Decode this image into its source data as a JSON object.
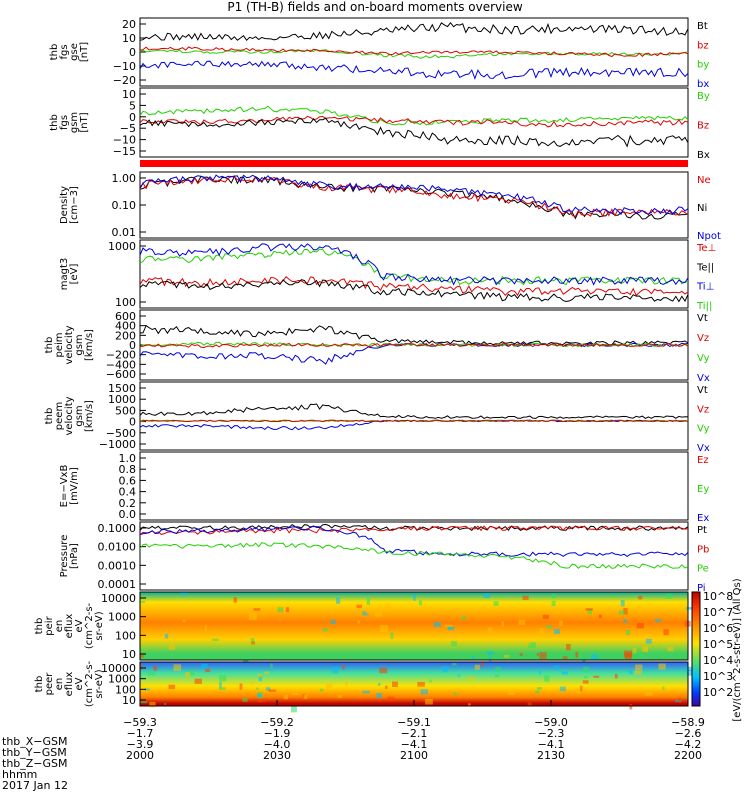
{
  "title": "P1 (TH-B) fields and on-board moments overview",
  "colors": {
    "black": "#000000",
    "red": "#e00000",
    "green": "#22d000",
    "blue": "#0000e0"
  },
  "panels": [
    {
      "id": "fgs-gse",
      "ylabel": [
        "thb",
        "fgs",
        "gse",
        "[nT]"
      ],
      "ticks": [
        "20",
        "10",
        "0",
        "−10",
        "−20"
      ],
      "legend": [
        [
          "Bt",
          "black"
        ],
        [
          "bz",
          "red"
        ],
        [
          "by",
          "green"
        ],
        [
          "bx",
          "blue"
        ]
      ]
    },
    {
      "id": "fgs-gsm",
      "ylabel": [
        "thb",
        "fgs",
        "gsm",
        "[nT]"
      ],
      "ticks": [
        "10",
        "5",
        "0",
        "−5",
        "−10",
        "−15"
      ],
      "legend": [
        [
          "By",
          "green"
        ],
        [
          "Bz",
          "red"
        ],
        [
          "Bx",
          "black"
        ]
      ]
    },
    {
      "id": "density",
      "ylabel": [
        "Density",
        "[cm−3]"
      ],
      "ticks": [
        "1.00",
        "0.10",
        "0.01"
      ],
      "legend": [
        [
          "Ne",
          "red"
        ],
        [
          "Ni",
          "black"
        ],
        [
          "Npot",
          "blue"
        ]
      ]
    },
    {
      "id": "temp",
      "ylabel": [
        "magt3",
        "[eV]"
      ],
      "ticks": [
        "1000",
        "100"
      ],
      "legend": [
        [
          "Te⊥",
          "red"
        ],
        [
          "Te||",
          "black"
        ],
        [
          "Ti⊥",
          "blue"
        ],
        [
          "Ti||",
          "green"
        ]
      ]
    },
    {
      "id": "ion-vel",
      "ylabel": [
        "thb",
        "peim",
        "velocity",
        "gsm",
        "[km/s]"
      ],
      "ticks": [
        "600",
        "400",
        "200",
        "0",
        "−200",
        "−400",
        "−600"
      ],
      "legend": [
        [
          "Vt",
          "black"
        ],
        [
          "Vz",
          "red"
        ],
        [
          "Vy",
          "green"
        ],
        [
          "Vx",
          "blue"
        ]
      ]
    },
    {
      "id": "elec-vel",
      "ylabel": [
        "thb",
        "peem",
        "velocity",
        "gsm",
        "[km/s]"
      ],
      "ticks": [
        "1500",
        "1000",
        "500",
        "0",
        "−500",
        "−1000"
      ],
      "legend": [
        [
          "Vt",
          "black"
        ],
        [
          "Vz",
          "red"
        ],
        [
          "Vy",
          "green"
        ],
        [
          "Vx",
          "blue"
        ]
      ]
    },
    {
      "id": "efield",
      "ylabel": [
        "E=−VxB",
        "[mV/m]"
      ],
      "ticks": [
        "1.0",
        "0.8",
        "0.6",
        "0.4",
        "0.2",
        "0.0"
      ],
      "legend": [
        [
          "Ez",
          "red"
        ],
        [
          "Ey",
          "green"
        ],
        [
          "Ex",
          "blue"
        ]
      ]
    },
    {
      "id": "pressure",
      "ylabel": [
        "Pressure",
        "[nPa]"
      ],
      "ticks": [
        "0.1000",
        "0.0100",
        "0.0010",
        "0.0001"
      ],
      "legend": [
        [
          "Pt",
          "black"
        ],
        [
          "Pb",
          "red"
        ],
        [
          "Pe",
          "green"
        ],
        [
          "Pi",
          "blue"
        ]
      ]
    },
    {
      "id": "peir",
      "ylabel": [
        "thb",
        "peir",
        "en",
        "eflux",
        "eV",
        "(cm^2-s-",
        "sr-eV)"
      ],
      "ticks": [
        "10000",
        "1000",
        "100",
        "10"
      ],
      "legend": []
    },
    {
      "id": "peer",
      "ylabel": [
        "thb",
        "peer",
        "en",
        "eflux",
        "eV",
        "(cm^2-s-",
        "sr-eV)"
      ],
      "ticks": [
        "10000",
        "1000",
        "100",
        "10"
      ],
      "legend": []
    }
  ],
  "colorbar": {
    "ticks": [
      "10^8",
      "10^7",
      "10^6",
      "10^5",
      "10^4",
      "10^3",
      "10^2"
    ],
    "label": "[eV/(cm^2-s-str-eV)] (All Qs)"
  },
  "xaxis": {
    "ticks": [
      {
        "x_gse": "−59.3",
        "y_gse": "−1.7",
        "z_gse": "−3.9",
        "hhmm": "2000"
      },
      {
        "x_gse": "−59.2",
        "y_gse": "−1.9",
        "z_gse": "−4.0",
        "hhmm": "2030"
      },
      {
        "x_gse": "−59.1",
        "y_gse": "−2.1",
        "z_gse": "−4.1",
        "hhmm": "2100"
      },
      {
        "x_gse": "−59.0",
        "y_gse": "−2.3",
        "z_gse": "−4.1",
        "hhmm": "2130"
      },
      {
        "x_gse": "−58.9",
        "y_gse": "−2.6",
        "z_gse": "−4.2",
        "hhmm": "2200"
      }
    ],
    "row_labels": [
      "thb_X−GSM",
      "thb_Y−GSM",
      "thb_Z−GSM",
      "hhmm"
    ],
    "date": "2017 Jan 12"
  },
  "chart_data": {
    "type": "line",
    "title": "P1 (TH-B) fields and on-board moments overview",
    "x_range": [
      "2000",
      "2200"
    ],
    "time_ticks": [
      "2000",
      "2030",
      "2100",
      "2130",
      "2200"
    ],
    "series": [
      {
        "panel": "fgs-gse",
        "name": "Bt",
        "color": "black",
        "y": [
          9,
          9,
          8,
          10,
          12,
          15,
          13,
          14,
          13,
          12
        ]
      },
      {
        "panel": "fgs-gse",
        "name": "bx",
        "color": "blue",
        "y": [
          -8,
          -7,
          -7,
          -9,
          -11,
          -13,
          -13,
          -12,
          -12,
          -12
        ]
      },
      {
        "panel": "fgs-gse",
        "name": "by",
        "color": "green",
        "y": [
          1,
          0,
          0,
          1,
          -2,
          -3,
          -1,
          -1,
          -1,
          -1
        ]
      },
      {
        "panel": "fgs-gse",
        "name": "bz",
        "color": "red",
        "y": [
          2,
          2,
          1,
          1,
          -1,
          0,
          0,
          -1,
          -2,
          -1
        ]
      },
      {
        "panel": "fgs-gsm",
        "name": "By",
        "color": "green",
        "y": [
          1,
          2,
          3,
          2,
          -3,
          -3,
          -2,
          -2,
          -1,
          -1
        ]
      },
      {
        "panel": "fgs-gsm",
        "name": "Bz",
        "color": "red",
        "y": [
          -2,
          -3,
          -2,
          -1,
          -2,
          -3,
          -3,
          -4,
          -3,
          -3
        ]
      },
      {
        "panel": "fgs-gsm",
        "name": "Bx",
        "color": "black",
        "y": [
          -3,
          -4,
          -3,
          -2,
          -7,
          -10,
          -11,
          -11,
          -11,
          -10
        ]
      },
      {
        "panel": "density",
        "name": "Ni",
        "color": "black",
        "y": [
          0.4,
          0.6,
          0.6,
          0.35,
          0.3,
          0.25,
          0.15,
          0.05,
          0.05,
          0.05
        ]
      },
      {
        "panel": "density",
        "name": "Ne",
        "color": "red",
        "y": [
          0.4,
          0.6,
          0.6,
          0.35,
          0.3,
          0.2,
          0.15,
          0.06,
          0.06,
          0.06
        ]
      },
      {
        "panel": "density",
        "name": "Npot",
        "color": "blue",
        "y": [
          0.45,
          0.65,
          0.65,
          0.4,
          0.35,
          0.3,
          0.2,
          0.07,
          0.07,
          0.07
        ]
      },
      {
        "panel": "temp",
        "name": "Ti||",
        "color": "green",
        "y": [
          1200,
          1200,
          1500,
          2000,
          400,
          300,
          300,
          300,
          300,
          300
        ]
      },
      {
        "panel": "temp",
        "name": "Ti⊥",
        "color": "blue",
        "y": [
          2000,
          1800,
          2500,
          2500,
          400,
          300,
          300,
          300,
          300,
          300
        ]
      },
      {
        "panel": "temp",
        "name": "Te⊥",
        "color": "red",
        "y": [
          300,
          250,
          300,
          300,
          200,
          180,
          150,
          150,
          150,
          150
        ]
      },
      {
        "panel": "temp",
        "name": "Te||",
        "color": "black",
        "y": [
          250,
          200,
          250,
          250,
          150,
          130,
          100,
          100,
          100,
          100
        ]
      },
      {
        "panel": "ion-vel",
        "name": "Vt",
        "color": "black",
        "y": [
          300,
          250,
          200,
          300,
          80,
          50,
          40,
          40,
          40,
          40
        ]
      },
      {
        "panel": "ion-vel",
        "name": "Vx",
        "color": "blue",
        "y": [
          -150,
          -200,
          -200,
          -300,
          0,
          0,
          0,
          0,
          0,
          0
        ]
      },
      {
        "panel": "ion-vel",
        "name": "Vy",
        "color": "green",
        "y": [
          0,
          20,
          20,
          0,
          0,
          0,
          0,
          0,
          0,
          0
        ]
      },
      {
        "panel": "ion-vel",
        "name": "Vz",
        "color": "red",
        "y": [
          0,
          -20,
          0,
          0,
          0,
          0,
          0,
          0,
          0,
          0
        ]
      },
      {
        "panel": "elec-vel",
        "name": "Vt",
        "color": "black",
        "y": [
          300,
          300,
          500,
          600,
          200,
          150,
          150,
          150,
          150,
          150
        ]
      },
      {
        "panel": "elec-vel",
        "name": "Vx",
        "color": "blue",
        "y": [
          -200,
          -200,
          -300,
          -300,
          0,
          0,
          0,
          0,
          0,
          0
        ]
      },
      {
        "panel": "elec-vel",
        "name": "Vy",
        "color": "green",
        "y": [
          0,
          0,
          0,
          0,
          0,
          0,
          0,
          0,
          0,
          0
        ]
      },
      {
        "panel": "elec-vel",
        "name": "Vz",
        "color": "red",
        "y": [
          0,
          0,
          0,
          0,
          0,
          0,
          0,
          0,
          0,
          0
        ]
      },
      {
        "panel": "pressure",
        "name": "Pt",
        "color": "black",
        "y": [
          0.08,
          0.08,
          0.09,
          0.1,
          0.08,
          0.08,
          0.08,
          0.08,
          0.08,
          0.08
        ]
      },
      {
        "panel": "pressure",
        "name": "Pb",
        "color": "red",
        "y": [
          0.05,
          0.05,
          0.06,
          0.06,
          0.07,
          0.08,
          0.08,
          0.08,
          0.08,
          0.08
        ]
      },
      {
        "panel": "pressure",
        "name": "Pi",
        "color": "blue",
        "y": [
          0.05,
          0.06,
          0.07,
          0.08,
          0.006,
          0.004,
          0.004,
          0.004,
          0.004,
          0.004
        ]
      },
      {
        "panel": "pressure",
        "name": "Pe",
        "color": "green",
        "y": [
          0.01,
          0.01,
          0.012,
          0.01,
          0.005,
          0.004,
          0.003,
          0.001,
          0.001,
          0.001
        ]
      }
    ]
  }
}
